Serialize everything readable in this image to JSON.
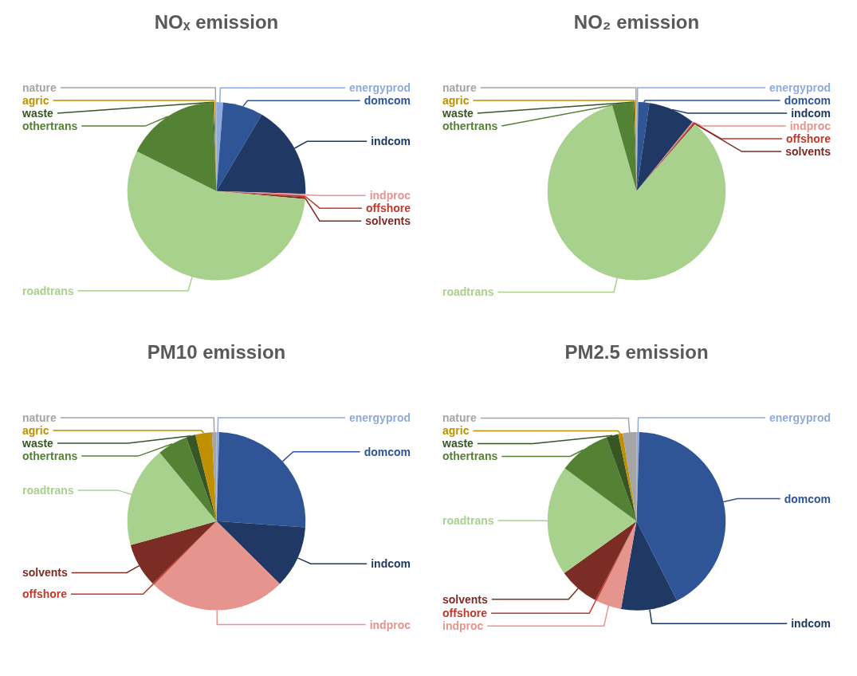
{
  "chart_data": [
    {
      "type": "pie",
      "title": "NOₓ emission",
      "categories": [
        "energyprod",
        "domcom",
        "indcom",
        "indproc",
        "offshore",
        "solvents",
        "roadtrans",
        "othertrans",
        "waste",
        "agric",
        "nature"
      ],
      "values": [
        1.2,
        7.3,
        17,
        0.3,
        0.3,
        0.3,
        56,
        16.9,
        0.2,
        0.2,
        0.3
      ],
      "colors": [
        "#8faadc",
        "#2f5597",
        "#1f3864",
        "#e6948e",
        "#c0392b",
        "#7b2c24",
        "#a9d18e",
        "#548235",
        "#375623",
        "#bf9000",
        "#a5a5a5"
      ]
    },
    {
      "type": "pie",
      "title": "NO₂ emission",
      "categories": [
        "energyprod",
        "domcom",
        "indcom",
        "indproc",
        "offshore",
        "solvents",
        "roadtrans",
        "othertrans",
        "waste",
        "agric",
        "nature"
      ],
      "values": [
        0.3,
        2,
        8.5,
        0.2,
        0.2,
        0.2,
        84.2,
        3.8,
        0.2,
        0.2,
        0.2
      ],
      "colors": [
        "#8faadc",
        "#2f5597",
        "#1f3864",
        "#e6948e",
        "#c0392b",
        "#7b2c24",
        "#a9d18e",
        "#548235",
        "#375623",
        "#bf9000",
        "#a5a5a5"
      ]
    },
    {
      "type": "pie",
      "title": "PM10 emission",
      "categories": [
        "energyprod",
        "domcom",
        "indcom",
        "indproc",
        "offshore",
        "solvents",
        "roadtrans",
        "othertrans",
        "waste",
        "agric",
        "nature"
      ],
      "values": [
        0.5,
        25.6,
        11.3,
        25,
        0.3,
        8,
        18.3,
        5.5,
        1.7,
        3,
        0.8
      ],
      "colors": [
        "#8faadc",
        "#2f5597",
        "#1f3864",
        "#e6948e",
        "#c0392b",
        "#7b2c24",
        "#a9d18e",
        "#548235",
        "#375623",
        "#bf9000",
        "#a5a5a5"
      ]
    },
    {
      "type": "pie",
      "title": "PM2.5 emission",
      "categories": [
        "energyprod",
        "domcom",
        "indcom",
        "indproc",
        "offshore",
        "solvents",
        "roadtrans",
        "othertrans",
        "waste",
        "agric",
        "nature"
      ],
      "values": [
        0.5,
        42,
        10.3,
        4.6,
        0.3,
        7.4,
        20,
        9.4,
        2.2,
        0.8,
        2.5
      ],
      "colors": [
        "#8faadc",
        "#2f5597",
        "#1f3864",
        "#e6948e",
        "#c0392b",
        "#7b2c24",
        "#a9d18e",
        "#548235",
        "#375623",
        "#bf9000",
        "#a5a5a5"
      ]
    }
  ]
}
